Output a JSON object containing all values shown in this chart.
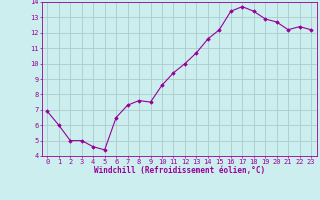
{
  "x": [
    0,
    1,
    2,
    3,
    4,
    5,
    6,
    7,
    8,
    9,
    10,
    11,
    12,
    13,
    14,
    15,
    16,
    17,
    18,
    19,
    20,
    21,
    22,
    23
  ],
  "y": [
    6.9,
    6.0,
    5.0,
    5.0,
    4.6,
    4.4,
    6.5,
    7.3,
    7.6,
    7.5,
    8.6,
    9.4,
    10.0,
    10.7,
    11.6,
    12.2,
    13.4,
    13.7,
    13.4,
    12.9,
    12.7,
    12.2,
    12.4,
    12.2
  ],
  "line_color": "#990099",
  "marker": "D",
  "marker_size": 1.8,
  "bg_color": "#cceeee",
  "grid_color": "#aacccc",
  "xlabel": "Windchill (Refroidissement éolien,°C)",
  "xlabel_color": "#990099",
  "tick_color": "#990099",
  "ylim": [
    4,
    14
  ],
  "xlim": [
    -0.5,
    23.5
  ],
  "yticks": [
    4,
    5,
    6,
    7,
    8,
    9,
    10,
    11,
    12,
    13,
    14
  ],
  "xticks": [
    0,
    1,
    2,
    3,
    4,
    5,
    6,
    7,
    8,
    9,
    10,
    11,
    12,
    13,
    14,
    15,
    16,
    17,
    18,
    19,
    20,
    21,
    22,
    23
  ],
  "tick_fontsize": 5.0,
  "xlabel_fontsize": 5.5,
  "line_width": 0.8
}
